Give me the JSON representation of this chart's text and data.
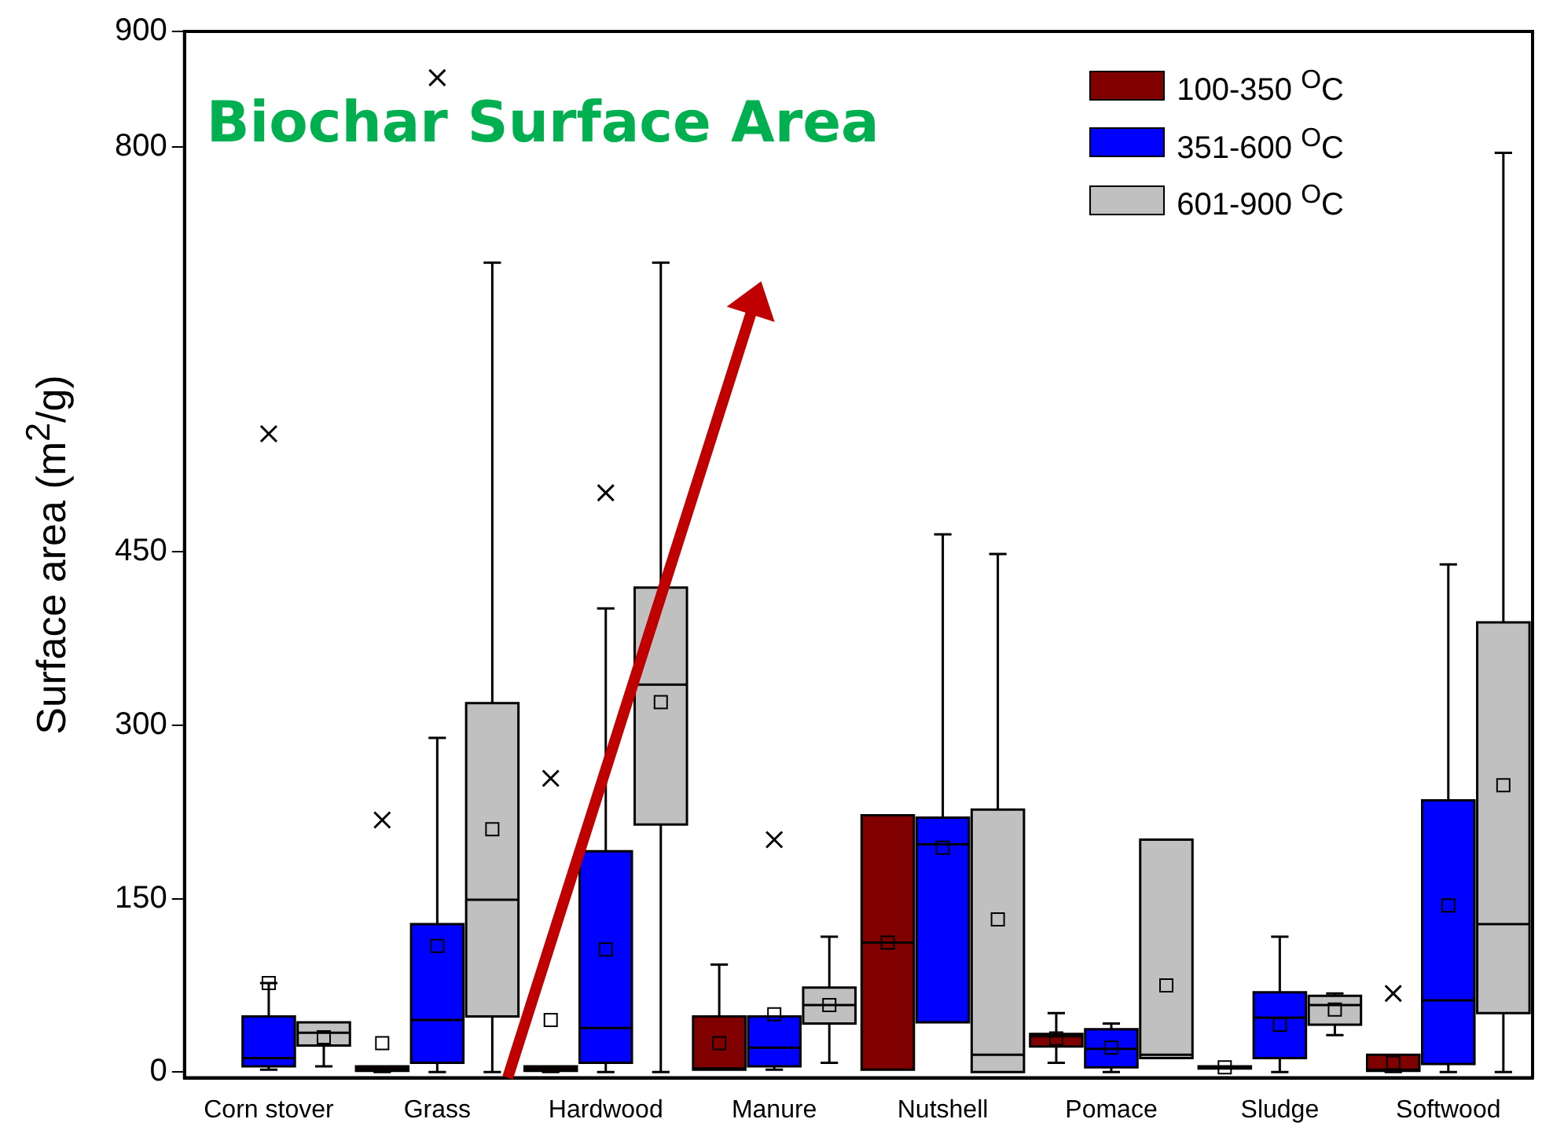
{
  "chart_data": {
    "type": "box",
    "title": "Biochar Surface Area",
    "ylabel": "Surface area (m$^{2}$/g)",
    "categories": [
      "Corn stover",
      "Grass",
      "Hardwood",
      "Manure",
      "Nutshell",
      "Pomace",
      "Sludge",
      "Softwood"
    ],
    "ylim": [
      -5,
      900
    ],
    "yticks": [
      0,
      150,
      300,
      450,
      800,
      900
    ],
    "grid": false,
    "legend": "top right",
    "series": [
      {
        "name": "100-350 $^{O}$C",
        "color": "#800000",
        "boxes": [
          null,
          {
            "low": 0,
            "q1": 1,
            "median": 3,
            "q3": 5,
            "high": 5,
            "mean": 25,
            "outliers": [
              218
            ]
          },
          {
            "low": 0,
            "q1": 1,
            "median": 3,
            "q3": 5,
            "high": 5,
            "mean": 45,
            "outliers": [
              254
            ]
          },
          {
            "low": 2,
            "q1": 2,
            "median": 3,
            "q3": 48,
            "high": 93,
            "mean": 25
          },
          {
            "low": 2,
            "q1": 2,
            "median": 112,
            "q3": 222,
            "high": 222,
            "mean": 112
          },
          {
            "low": 8,
            "q1": 22,
            "median": 31,
            "q3": 33,
            "high": 51,
            "mean": 29
          },
          {
            "low": 3,
            "q1": 3,
            "median": 4,
            "q3": 5,
            "high": 5,
            "mean": 4
          },
          {
            "low": 0,
            "q1": 1,
            "median": 2,
            "q3": 15,
            "high": 15,
            "mean": 8,
            "outliers": [
              68
            ]
          }
        ]
      },
      {
        "name": "351-600 $^{O}$C",
        "color": "#0000ff",
        "boxes": [
          {
            "low": 2,
            "q1": 5,
            "median": 12,
            "q3": 48,
            "high": 77,
            "mean": 77,
            "outliers": [
              552
            ]
          },
          {
            "low": 0,
            "q1": 8,
            "median": 45,
            "q3": 128,
            "high": 289,
            "mean": 109,
            "outliers": [
              860
            ]
          },
          {
            "low": 0,
            "q1": 8,
            "median": 38,
            "q3": 191,
            "high": 401,
            "mean": 106,
            "outliers": [
              501
            ]
          },
          {
            "low": 2,
            "q1": 5,
            "median": 21,
            "q3": 48,
            "high": 48,
            "mean": 50,
            "outliers": [
              201
            ]
          },
          {
            "low": 43,
            "q1": 43,
            "median": 197,
            "q3": 220,
            "high": 465,
            "mean": 194
          },
          {
            "low": 0,
            "q1": 4,
            "median": 20,
            "q3": 37,
            "high": 42,
            "mean": 21
          },
          {
            "low": 0,
            "q1": 12,
            "median": 47,
            "q3": 69,
            "high": 117,
            "mean": 41
          },
          {
            "low": 0,
            "q1": 7,
            "median": 62,
            "q3": 235,
            "high": 439,
            "mean": 144
          }
        ]
      },
      {
        "name": "601-900 $^{O}$C",
        "color": "#c0c0c0",
        "boxes": [
          {
            "low": 5,
            "q1": 23,
            "median": 34,
            "q3": 43,
            "high": 43,
            "mean": 30
          },
          {
            "low": 0,
            "q1": 48,
            "median": 149,
            "q3": 319,
            "high": 700,
            "mean": 210
          },
          {
            "low": 0,
            "q1": 214,
            "median": 335,
            "q3": 419,
            "high": 700,
            "mean": 320
          },
          {
            "low": 8,
            "q1": 42,
            "median": 58,
            "q3": 73,
            "high": 117,
            "mean": 58
          },
          {
            "low": 0,
            "q1": 0,
            "median": 15,
            "q3": 227,
            "high": 448,
            "mean": 132
          },
          {
            "low": 12,
            "q1": 12,
            "median": 15,
            "q3": 201,
            "high": 201,
            "mean": 75
          },
          {
            "low": 32,
            "q1": 41,
            "median": 58,
            "q3": 66,
            "high": 68,
            "mean": 54
          },
          {
            "low": 0,
            "q1": 51,
            "median": 128,
            "q3": 389,
            "high": 795,
            "mean": 248
          }
        ]
      }
    ]
  }
}
